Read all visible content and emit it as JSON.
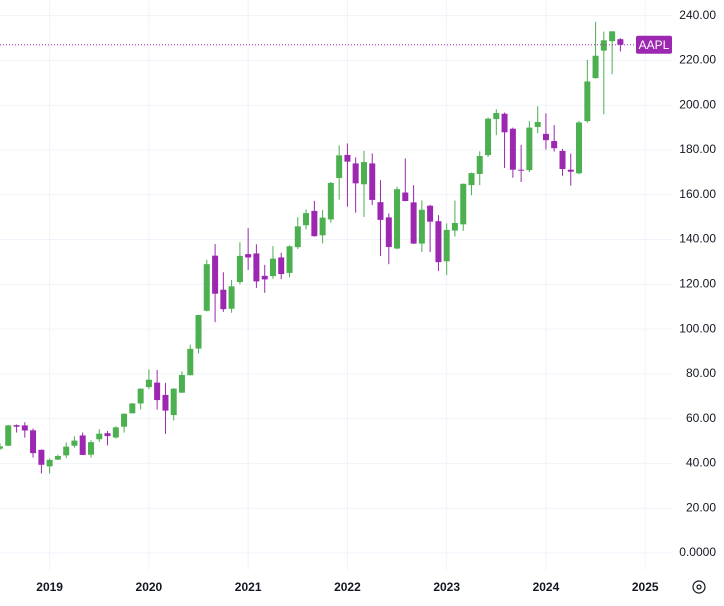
{
  "chart_data": {
    "type": "candlestick",
    "x": [
      2018.5,
      2018.583,
      2018.667,
      2018.75,
      2018.833,
      2018.917,
      2019,
      2019.083,
      2019.167,
      2019.25,
      2019.333,
      2019.417,
      2019.5,
      2019.583,
      2019.667,
      2019.75,
      2019.833,
      2019.917,
      2020,
      2020.083,
      2020.167,
      2020.25,
      2020.333,
      2020.417,
      2020.5,
      2020.583,
      2020.667,
      2020.75,
      2020.833,
      2020.917,
      2021,
      2021.083,
      2021.167,
      2021.25,
      2021.333,
      2021.417,
      2021.5,
      2021.583,
      2021.667,
      2021.75,
      2021.833,
      2021.917,
      2022,
      2022.083,
      2022.167,
      2022.25,
      2022.333,
      2022.417,
      2022.5,
      2022.583,
      2022.667,
      2022.75,
      2022.833,
      2022.917,
      2023,
      2023.083,
      2023.167,
      2023.25,
      2023.333,
      2023.417,
      2023.5,
      2023.583,
      2023.667,
      2023.75,
      2023.833,
      2023.917,
      2024,
      2024.083,
      2024.167,
      2024.25,
      2024.333,
      2024.417,
      2024.5,
      2024.583,
      2024.667,
      2024.75
    ],
    "open": [
      46.6,
      47.9,
      57.1,
      57.0,
      54.8,
      46.1,
      38.7,
      41.7,
      43.6,
      47.9,
      52.5,
      43.9,
      50.8,
      53.5,
      51.6,
      56.4,
      62.4,
      66.8,
      74.1,
      76.1,
      70.6,
      61.6,
      71.6,
      79.4,
      91.3,
      108.2,
      132.8,
      117.6,
      109.1,
      121.0,
      133.5,
      133.8,
      123.8,
      123.7,
      132.0,
      125.1,
      136.6,
      146.4,
      152.8,
      141.9,
      149.0,
      167.5,
      177.8,
      174.0,
      164.7,
      174.0,
      156.7,
      149.9,
      136.0,
      161.0,
      156.6,
      138.2,
      155.1,
      148.2,
      130.3,
      144.0,
      146.8,
      164.3,
      169.3,
      177.7,
      193.8,
      196.2,
      189.5,
      171.2,
      171.0,
      190.3,
      187.2,
      184.0,
      179.6,
      171.2,
      169.6,
      192.9,
      212.1,
      224.4,
      228.6,
      229.5
    ],
    "high": [
      49.0,
      57.2,
      57.4,
      58.4,
      55.6,
      46.2,
      42.2,
      44.0,
      49.4,
      52.1,
      53.8,
      50.4,
      55.3,
      54.5,
      56.6,
      62.3,
      67.0,
      73.5,
      82.0,
      81.8,
      76.0,
      73.6,
      81.1,
      93.1,
      106.4,
      131.0,
      138.0,
      125.4,
      122.0,
      138.8,
      145.1,
      137.9,
      128.7,
      137.1,
      134.1,
      137.4,
      150.0,
      153.5,
      157.3,
      153.2,
      165.7,
      182.1,
      182.9,
      176.7,
      179.6,
      178.5,
      166.5,
      151.7,
      163.6,
      176.2,
      164.3,
      157.5,
      155.5,
      150.9,
      147.2,
      157.4,
      165.0,
      169.9,
      179.4,
      194.5,
      198.2,
      196.7,
      190.0,
      182.3,
      192.9,
      199.6,
      196.4,
      191.1,
      180.5,
      178.4,
      193.0,
      220.2,
      237.2,
      232.9,
      233.1,
      229.9
    ],
    "low": [
      45.9,
      47.8,
      53.8,
      51.5,
      42.6,
      35.5,
      35.5,
      41.5,
      42.4,
      47.1,
      43.7,
      42.6,
      49.6,
      48.1,
      51.1,
      53.8,
      62.3,
      64.1,
      73.2,
      64.1,
      53.2,
      59.2,
      71.5,
      79.3,
      89.1,
      107.9,
      103.1,
      107.7,
      107.3,
      120.0,
      126.4,
      118.4,
      116.2,
      122.5,
      122.3,
      123.1,
      135.8,
      144.5,
      141.3,
      138.3,
      147.5,
      157.8,
      154.7,
      152.0,
      150.1,
      155.4,
      132.6,
      129.0,
      135.7,
      157.1,
      138.0,
      134.4,
      134.4,
      125.9,
      124.2,
      141.3,
      143.9,
      159.8,
      164.3,
      176.9,
      186.6,
      172.0,
      167.6,
      165.7,
      170.1,
      187.5,
      180.2,
      179.3,
      168.5,
      164.1,
      169.1,
      192.2,
      211.9,
      196.0,
      213.9,
      224.0
    ],
    "close": [
      47.6,
      57.0,
      56.4,
      54.7,
      44.6,
      39.4,
      41.6,
      43.3,
      47.5,
      50.2,
      43.8,
      49.5,
      53.3,
      52.2,
      56.1,
      62.2,
      66.8,
      73.4,
      77.4,
      68.3,
      63.6,
      73.4,
      79.5,
      91.2,
      106.3,
      129.0,
      115.8,
      108.9,
      119.1,
      132.7,
      132.0,
      121.3,
      122.2,
      131.5,
      124.6,
      137.0,
      145.9,
      151.8,
      141.5,
      149.8,
      165.3,
      177.6,
      174.8,
      165.1,
      174.6,
      157.7,
      148.8,
      136.7,
      162.5,
      157.2,
      138.2,
      153.3,
      148.0,
      129.9,
      144.3,
      147.4,
      164.9,
      169.7,
      177.3,
      194.0,
      196.5,
      187.9,
      171.2,
      170.8,
      190.0,
      192.5,
      184.4,
      180.8,
      171.5,
      170.3,
      192.3,
      210.6,
      222.1,
      229.0,
      233.0,
      227.0
    ],
    "up_color": "#4caf50",
    "down_color": "#9c27b0",
    "price_line": {
      "label": "AAPL",
      "value": 227,
      "color": "#9c27b0"
    },
    "xlim": [
      2018.5,
      2025.27
    ],
    "xticks": [
      2019,
      2020,
      2021,
      2022,
      2023,
      2024,
      2025
    ],
    "ylim": [
      -7.6,
      247
    ],
    "yticks": [
      {
        "value": 0,
        "label": "0.0000"
      },
      {
        "value": 20,
        "label": "20.00"
      },
      {
        "value": 40,
        "label": "40.00"
      },
      {
        "value": 60,
        "label": "60.00"
      },
      {
        "value": 80,
        "label": "80.00"
      },
      {
        "value": 100,
        "label": "100.00"
      },
      {
        "value": 120,
        "label": "120.00"
      },
      {
        "value": 140,
        "label": "140.00"
      },
      {
        "value": 160,
        "label": "160.00"
      },
      {
        "value": 180,
        "label": "180.00"
      },
      {
        "value": 200,
        "label": "200.00"
      },
      {
        "value": 220,
        "label": "220.00"
      },
      {
        "value": 240,
        "label": "240.00"
      }
    ],
    "grid": true
  }
}
